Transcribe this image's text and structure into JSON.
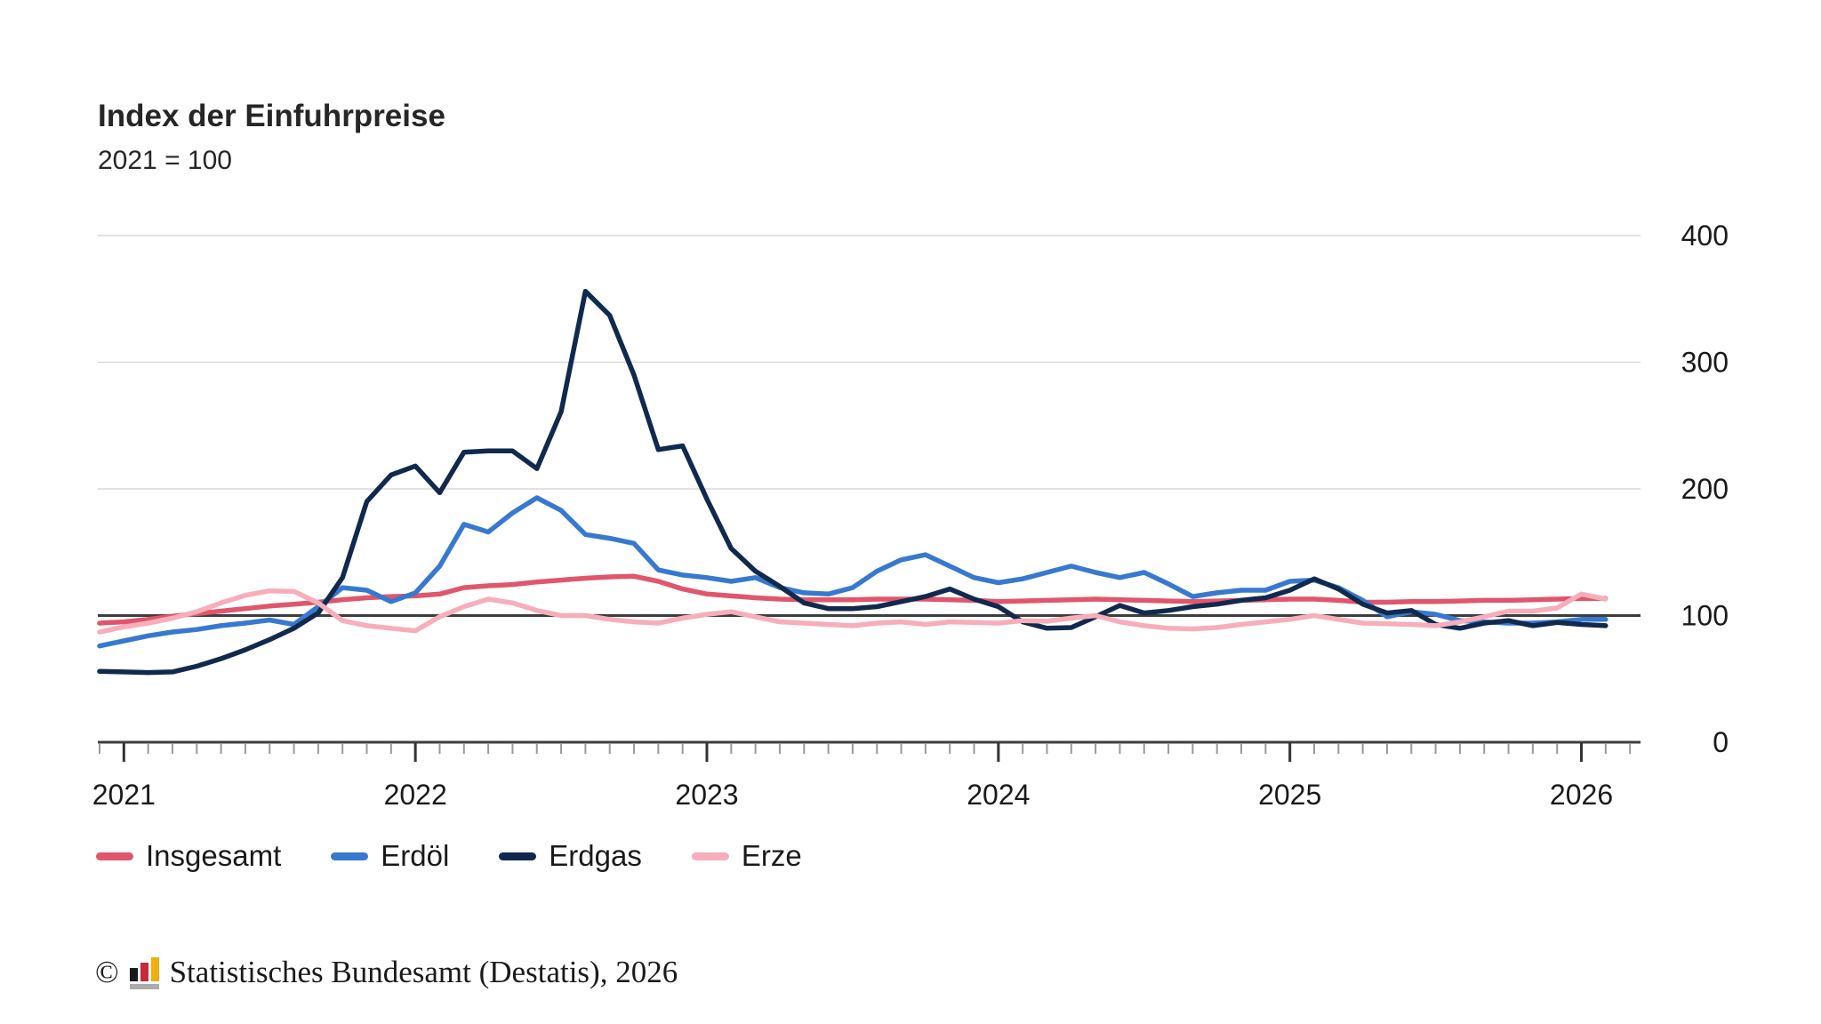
{
  "header": {
    "title": "Index der Einfuhrpreise",
    "subtitle": "2021 = 100"
  },
  "chart_data": {
    "type": "line",
    "title": "Index der Einfuhrpreise",
    "subtitle": "2021 = 100",
    "x_start": "2020-12",
    "x_end": "2026-02",
    "x_interval": "month",
    "points_per_series": 63,
    "x_tick_labels": [
      "2021",
      "2022",
      "2023",
      "2024",
      "2025",
      "2026"
    ],
    "y_tick_labels": [
      400,
      300,
      200,
      100,
      0
    ],
    "ylim": [
      0,
      430
    ],
    "baseline": 100,
    "grid": "horizontal",
    "minor_ticks": "monthly",
    "legend_position": "bottom",
    "series": [
      {
        "name": "Insgesamt",
        "color": "#e0566c",
        "values": [
          94,
          95,
          97,
          99.5,
          101.5,
          103.5,
          105.5,
          107.5,
          109,
          110.5,
          112.5,
          114,
          115,
          115.5,
          117,
          122,
          123.5,
          124.5,
          126.5,
          128,
          129.5,
          130.5,
          131,
          127,
          121,
          117,
          115.5,
          114,
          113,
          112.5,
          112.5,
          112.5,
          113,
          113,
          113,
          112.5,
          112,
          111,
          111.5,
          112,
          112.5,
          113,
          112.5,
          112,
          111.5,
          111,
          111.5,
          112,
          112.5,
          113,
          113,
          112,
          110.5,
          110.5,
          111,
          111,
          111.5,
          112,
          112,
          112.5,
          113,
          113.5,
          113.5
        ]
      },
      {
        "name": "Erdöl",
        "color": "#3779cf",
        "values": [
          76,
          80,
          84,
          87,
          89,
          92,
          94,
          96.5,
          93,
          107,
          122,
          120,
          111,
          118,
          139,
          172,
          166,
          181,
          193,
          183,
          164,
          161,
          157,
          136,
          132,
          130,
          127,
          130,
          122,
          118,
          117,
          122,
          135,
          144,
          148,
          139,
          130,
          126,
          129,
          134,
          139,
          134,
          130,
          134,
          125,
          115,
          118,
          120,
          120,
          127,
          128,
          122,
          112,
          99,
          103,
          101,
          96,
          95,
          94,
          94,
          95,
          97,
          97
        ]
      },
      {
        "name": "Erdgas",
        "color": "#12294e",
        "values": [
          56,
          55.5,
          55,
          55.5,
          60,
          66,
          73,
          81,
          90,
          102,
          130,
          190,
          211,
          218,
          197,
          229,
          230,
          230,
          216,
          261,
          356,
          337,
          290,
          231,
          234,
          192,
          153,
          135,
          123,
          110,
          105.5,
          105.5,
          107,
          111,
          115,
          121,
          113,
          107,
          95,
          90,
          90.5,
          99,
          108,
          102,
          104,
          107,
          109,
          112,
          114,
          120,
          129,
          121,
          109,
          102,
          104,
          93,
          90,
          94,
          96,
          92,
          94.5,
          93,
          92
        ]
      },
      {
        "name": "Erze",
        "color": "#f7adba",
        "values": [
          87,
          91,
          94,
          98,
          103,
          110,
          116,
          119.5,
          119,
          110,
          96,
          92,
          90,
          88,
          99,
          107,
          113,
          110,
          104,
          100,
          100,
          97,
          95,
          94,
          98,
          101,
          103,
          99,
          95,
          94,
          93,
          92,
          94,
          95,
          93,
          95,
          94.5,
          94,
          96,
          95.5,
          98,
          100,
          95,
          92,
          90,
          89.5,
          90.5,
          93,
          95,
          97,
          100,
          97,
          94,
          93.5,
          93,
          92,
          95,
          99,
          103.5,
          103.5,
          106,
          117,
          113
        ]
      }
    ]
  },
  "legend": {
    "items": [
      {
        "label": "Insgesamt",
        "color": "#e0566c"
      },
      {
        "label": "Erdöl",
        "color": "#3779cf"
      },
      {
        "label": "Erdgas",
        "color": "#12294e"
      },
      {
        "label": "Erze",
        "color": "#f7adba"
      }
    ]
  },
  "footer": {
    "copyright": "©",
    "source": "Statistisches Bundesamt (Destatis), 2026"
  },
  "colors": {
    "gridline": "#d9d9d9",
    "axis": "#3d3d3d",
    "minor_tick": "#999999",
    "major_tick": "#333333",
    "text": "#1a1a1a"
  }
}
